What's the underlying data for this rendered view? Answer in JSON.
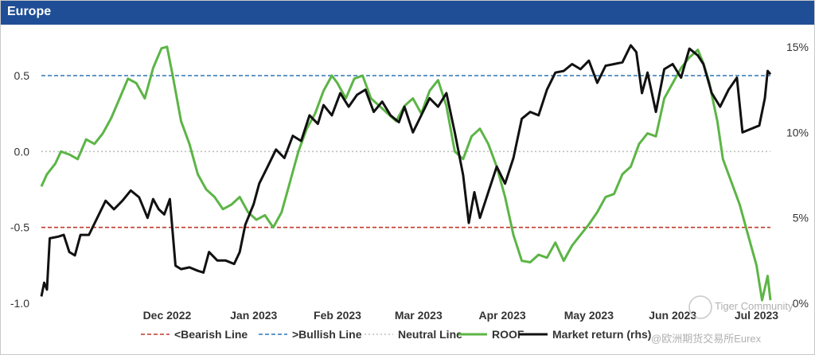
{
  "header": {
    "title": "Europe"
  },
  "chart_data": {
    "type": "line",
    "title": "Europe",
    "x_tick_labels": [
      "Dec 2022",
      "Jan 2023",
      "Feb 2023",
      "Mar 2023",
      "Apr 2023",
      "May 2023",
      "Jun 2023",
      "Jul 2023"
    ],
    "x_range": [
      "2022-11-01",
      "2023-07-20"
    ],
    "y_left": {
      "range": [
        -1.0,
        0.75
      ],
      "ticks": [
        "0.5",
        "0.0",
        "-0.5",
        "-1.0"
      ],
      "tick_values": [
        0.5,
        0.0,
        -0.5,
        -1.0
      ]
    },
    "y_right": {
      "range": [
        0,
        15.5
      ],
      "ticks": [
        "15%",
        "10%",
        "5%",
        "0%"
      ],
      "tick_values": [
        15,
        10,
        5,
        0
      ]
    },
    "reference_lines": [
      {
        "name": "<Bearish Line",
        "value": -0.5,
        "axis": "left",
        "color": "#c0392b",
        "style": "dashed"
      },
      {
        "name": ">Bullish Line",
        "value": 0.5,
        "axis": "left",
        "color": "#2e75b6",
        "style": "dashed"
      },
      {
        "name": "Neutral Line",
        "value": 0.0,
        "axis": "left",
        "color": "#bdbdbd",
        "style": "dotted"
      }
    ],
    "series": [
      {
        "name": "ROOF",
        "axis": "left",
        "color": "#5cb546",
        "points": [
          [
            "2022-11-01",
            -0.23
          ],
          [
            "2022-11-03",
            -0.15
          ],
          [
            "2022-11-06",
            -0.08
          ],
          [
            "2022-11-08",
            0.0
          ],
          [
            "2022-11-11",
            -0.02
          ],
          [
            "2022-11-14",
            -0.05
          ],
          [
            "2022-11-17",
            0.08
          ],
          [
            "2022-11-20",
            0.05
          ],
          [
            "2022-11-23",
            0.12
          ],
          [
            "2022-11-26",
            0.22
          ],
          [
            "2022-11-29",
            0.35
          ],
          [
            "2022-12-02",
            0.48
          ],
          [
            "2022-12-05",
            0.45
          ],
          [
            "2022-12-08",
            0.35
          ],
          [
            "2022-12-11",
            0.55
          ],
          [
            "2022-12-14",
            0.68
          ],
          [
            "2022-12-16",
            0.69
          ],
          [
            "2022-12-18",
            0.5
          ],
          [
            "2022-12-21",
            0.2
          ],
          [
            "2022-12-24",
            0.05
          ],
          [
            "2022-12-27",
            -0.15
          ],
          [
            "2022-12-30",
            -0.25
          ],
          [
            "2023-01-02",
            -0.3
          ],
          [
            "2023-01-05",
            -0.38
          ],
          [
            "2023-01-08",
            -0.35
          ],
          [
            "2023-01-11",
            -0.3
          ],
          [
            "2023-01-14",
            -0.4
          ],
          [
            "2023-01-17",
            -0.45
          ],
          [
            "2023-01-20",
            -0.42
          ],
          [
            "2023-01-23",
            -0.5
          ],
          [
            "2023-01-26",
            -0.4
          ],
          [
            "2023-01-29",
            -0.2
          ],
          [
            "2023-02-01",
            0.0
          ],
          [
            "2023-02-04",
            0.15
          ],
          [
            "2023-02-07",
            0.25
          ],
          [
            "2023-02-10",
            0.4
          ],
          [
            "2023-02-13",
            0.5
          ],
          [
            "2023-02-15",
            0.45
          ],
          [
            "2023-02-18",
            0.35
          ],
          [
            "2023-02-21",
            0.48
          ],
          [
            "2023-02-24",
            0.5
          ],
          [
            "2023-02-27",
            0.35
          ],
          [
            "2023-03-02",
            0.3
          ],
          [
            "2023-03-05",
            0.25
          ],
          [
            "2023-03-08",
            0.2
          ],
          [
            "2023-03-11",
            0.3
          ],
          [
            "2023-03-14",
            0.35
          ],
          [
            "2023-03-17",
            0.25
          ],
          [
            "2023-03-20",
            0.4
          ],
          [
            "2023-03-23",
            0.47
          ],
          [
            "2023-03-26",
            0.3
          ],
          [
            "2023-03-29",
            0.0
          ],
          [
            "2023-04-01",
            -0.05
          ],
          [
            "2023-04-04",
            0.1
          ],
          [
            "2023-04-07",
            0.15
          ],
          [
            "2023-04-10",
            0.05
          ],
          [
            "2023-04-13",
            -0.1
          ],
          [
            "2023-04-16",
            -0.3
          ],
          [
            "2023-04-19",
            -0.55
          ],
          [
            "2023-04-22",
            -0.72
          ],
          [
            "2023-04-25",
            -0.73
          ],
          [
            "2023-04-28",
            -0.68
          ],
          [
            "2023-05-01",
            -0.7
          ],
          [
            "2023-05-04",
            -0.6
          ],
          [
            "2023-05-07",
            -0.72
          ],
          [
            "2023-05-10",
            -0.62
          ],
          [
            "2023-05-13",
            -0.55
          ],
          [
            "2023-05-16",
            -0.48
          ],
          [
            "2023-05-19",
            -0.4
          ],
          [
            "2023-05-22",
            -0.3
          ],
          [
            "2023-05-25",
            -0.28
          ],
          [
            "2023-05-28",
            -0.15
          ],
          [
            "2023-05-31",
            -0.1
          ],
          [
            "2023-06-03",
            0.05
          ],
          [
            "2023-06-06",
            0.12
          ],
          [
            "2023-06-09",
            0.1
          ],
          [
            "2023-06-12",
            0.35
          ],
          [
            "2023-06-15",
            0.45
          ],
          [
            "2023-06-18",
            0.55
          ],
          [
            "2023-06-21",
            0.62
          ],
          [
            "2023-06-24",
            0.67
          ],
          [
            "2023-06-26",
            0.58
          ],
          [
            "2023-06-28",
            0.46
          ],
          [
            "2023-07-01",
            0.2
          ],
          [
            "2023-07-03",
            -0.05
          ],
          [
            "2023-07-06",
            -0.2
          ],
          [
            "2023-07-09",
            -0.35
          ],
          [
            "2023-07-12",
            -0.55
          ],
          [
            "2023-07-15",
            -0.75
          ],
          [
            "2023-07-17",
            -0.98
          ],
          [
            "2023-07-19",
            -0.82
          ],
          [
            "2023-07-20",
            -0.98
          ]
        ]
      },
      {
        "name": "Market return (rhs)",
        "axis": "right",
        "color": "#111111",
        "points": [
          [
            "2022-11-01",
            0.4
          ],
          [
            "2022-11-02",
            1.2
          ],
          [
            "2022-11-03",
            0.8
          ],
          [
            "2022-11-04",
            3.8
          ],
          [
            "2022-11-07",
            3.9
          ],
          [
            "2022-11-09",
            4.0
          ],
          [
            "2022-11-11",
            3.0
          ],
          [
            "2022-11-13",
            2.8
          ],
          [
            "2022-11-15",
            4.0
          ],
          [
            "2022-11-18",
            4.0
          ],
          [
            "2022-11-21",
            5.0
          ],
          [
            "2022-11-24",
            6.0
          ],
          [
            "2022-11-27",
            5.5
          ],
          [
            "2022-11-30",
            6.0
          ],
          [
            "2022-12-03",
            6.6
          ],
          [
            "2022-12-06",
            6.2
          ],
          [
            "2022-12-09",
            5.0
          ],
          [
            "2022-12-11",
            6.1
          ],
          [
            "2022-12-13",
            5.5
          ],
          [
            "2022-12-15",
            5.2
          ],
          [
            "2022-12-17",
            6.1
          ],
          [
            "2022-12-19",
            2.2
          ],
          [
            "2022-12-21",
            2.0
          ],
          [
            "2022-12-24",
            2.1
          ],
          [
            "2022-12-27",
            1.9
          ],
          [
            "2022-12-29",
            1.8
          ],
          [
            "2022-12-31",
            3.0
          ],
          [
            "2023-01-03",
            2.5
          ],
          [
            "2023-01-06",
            2.5
          ],
          [
            "2023-01-09",
            2.3
          ],
          [
            "2023-01-11",
            3.0
          ],
          [
            "2023-01-13",
            4.6
          ],
          [
            "2023-01-16",
            5.8
          ],
          [
            "2023-01-18",
            7.0
          ],
          [
            "2023-01-21",
            8.0
          ],
          [
            "2023-01-24",
            9.0
          ],
          [
            "2023-01-27",
            8.5
          ],
          [
            "2023-01-30",
            9.8
          ],
          [
            "2023-02-02",
            9.5
          ],
          [
            "2023-02-05",
            11.0
          ],
          [
            "2023-02-08",
            10.5
          ],
          [
            "2023-02-10",
            11.6
          ],
          [
            "2023-02-13",
            11.0
          ],
          [
            "2023-02-16",
            12.3
          ],
          [
            "2023-02-19",
            11.5
          ],
          [
            "2023-02-22",
            12.2
          ],
          [
            "2023-02-25",
            12.5
          ],
          [
            "2023-02-28",
            11.2
          ],
          [
            "2023-03-03",
            11.8
          ],
          [
            "2023-03-06",
            11.0
          ],
          [
            "2023-03-09",
            10.6
          ],
          [
            "2023-03-11",
            11.5
          ],
          [
            "2023-03-14",
            10.0
          ],
          [
            "2023-03-17",
            11.0
          ],
          [
            "2023-03-20",
            12.0
          ],
          [
            "2023-03-23",
            11.5
          ],
          [
            "2023-03-26",
            12.3
          ],
          [
            "2023-03-29",
            10.0
          ],
          [
            "2023-04-01",
            7.5
          ],
          [
            "2023-04-03",
            4.7
          ],
          [
            "2023-04-05",
            6.5
          ],
          [
            "2023-04-07",
            5.0
          ],
          [
            "2023-04-10",
            6.5
          ],
          [
            "2023-04-13",
            8.0
          ],
          [
            "2023-04-16",
            7.0
          ],
          [
            "2023-04-19",
            8.5
          ],
          [
            "2023-04-22",
            10.8
          ],
          [
            "2023-04-25",
            11.2
          ],
          [
            "2023-04-28",
            11.0
          ],
          [
            "2023-05-01",
            12.5
          ],
          [
            "2023-05-04",
            13.5
          ],
          [
            "2023-05-07",
            13.6
          ],
          [
            "2023-05-10",
            14.0
          ],
          [
            "2023-05-13",
            13.7
          ],
          [
            "2023-05-16",
            14.2
          ],
          [
            "2023-05-19",
            12.9
          ],
          [
            "2023-05-22",
            13.9
          ],
          [
            "2023-05-25",
            14.0
          ],
          [
            "2023-05-28",
            14.1
          ],
          [
            "2023-05-31",
            15.1
          ],
          [
            "2023-06-02",
            14.7
          ],
          [
            "2023-06-04",
            12.3
          ],
          [
            "2023-06-06",
            13.5
          ],
          [
            "2023-06-09",
            11.2
          ],
          [
            "2023-06-12",
            13.7
          ],
          [
            "2023-06-15",
            14.0
          ],
          [
            "2023-06-18",
            13.2
          ],
          [
            "2023-06-21",
            14.9
          ],
          [
            "2023-06-24",
            14.5
          ],
          [
            "2023-06-26",
            14.0
          ],
          [
            "2023-06-29",
            12.3
          ],
          [
            "2023-07-02",
            11.5
          ],
          [
            "2023-07-05",
            12.5
          ],
          [
            "2023-07-08",
            13.2
          ],
          [
            "2023-07-10",
            10.0
          ],
          [
            "2023-07-13",
            10.2
          ],
          [
            "2023-07-16",
            10.4
          ],
          [
            "2023-07-18",
            12.0
          ],
          [
            "2023-07-19",
            13.6
          ],
          [
            "2023-07-20",
            13.4
          ]
        ]
      }
    ],
    "legend": {
      "position": "bottom",
      "items": [
        "<Bearish Line",
        ">Bullish Line",
        "Neutral Line",
        "ROOF",
        "Market return (rhs)"
      ]
    }
  },
  "watermark": {
    "line1": "Tiger Community",
    "line2": "@欧洲期货交易所Eurex"
  }
}
